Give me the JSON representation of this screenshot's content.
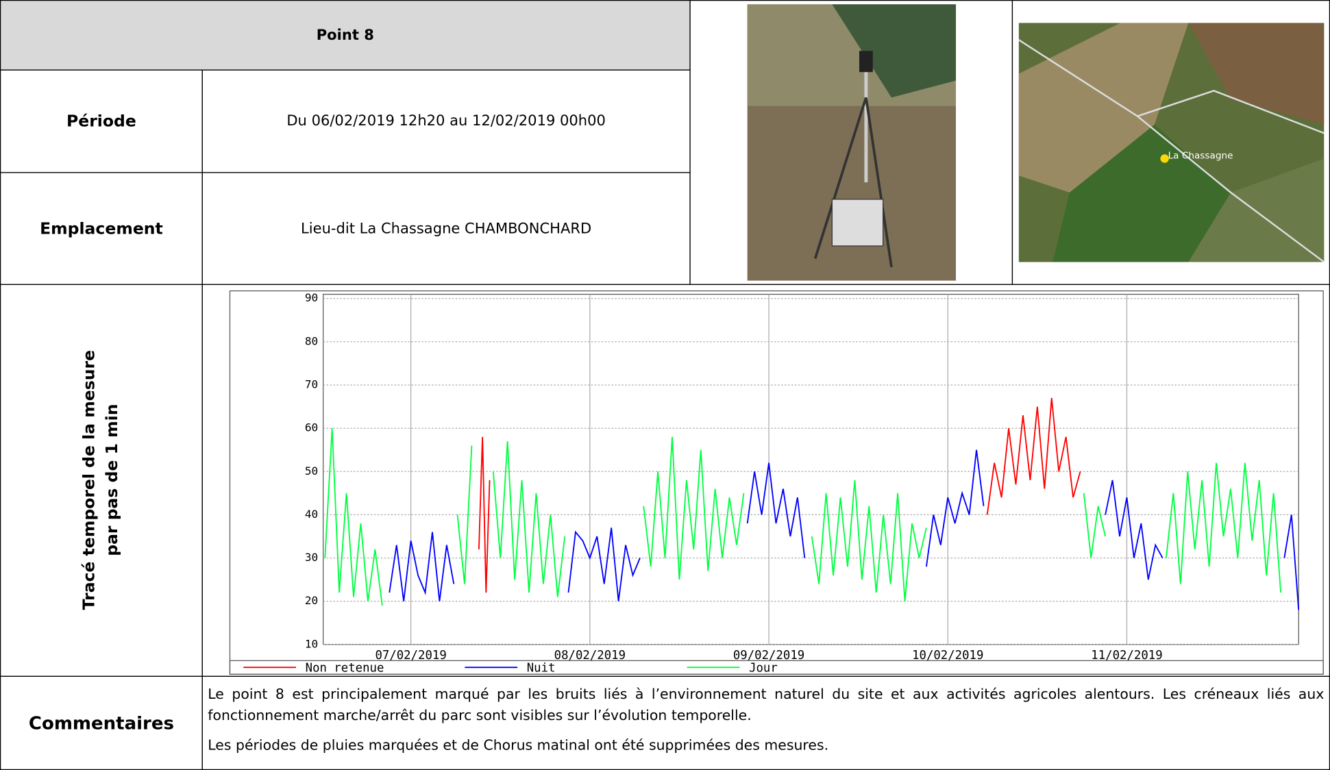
{
  "header": {
    "title": "Point 8"
  },
  "rows": [
    {
      "label": "Période",
      "value": "Du 06/02/2019 12h20 au 12/02/2019 00h00"
    },
    {
      "label": "Emplacement",
      "value": "Lieu-dit La Chassagne CHAMBONCHARD"
    }
  ],
  "map": {
    "place_label": "La Chassagne"
  },
  "chart_section": {
    "label_lines": [
      "Tracé temporel de la mesure",
      "par pas de 1 min"
    ]
  },
  "chart_data": {
    "type": "line",
    "ylim": [
      10,
      90
    ],
    "yticks": [
      10,
      20,
      30,
      40,
      50,
      60,
      70,
      80,
      90
    ],
    "xlim": [
      6.51,
      11.96
    ],
    "xticks": [
      {
        "value": 7,
        "label": "07/02/2019"
      },
      {
        "value": 8,
        "label": "08/02/2019"
      },
      {
        "value": 9,
        "label": "09/02/2019"
      },
      {
        "value": 10,
        "label": "10/02/2019"
      },
      {
        "value": 11,
        "label": "11/02/2019"
      }
    ],
    "grid": true,
    "legend": "bottom",
    "series": [
      {
        "name": "Non retenue",
        "color": "#ff0000",
        "x": [
          7.38,
          7.4,
          7.42,
          7.44,
          7.46,
          10.22,
          10.26,
          10.3,
          10.34,
          10.38,
          10.42,
          10.46,
          10.5,
          10.54,
          10.58,
          10.62,
          10.66,
          10.7,
          10.74
        ],
        "values": [
          32,
          58,
          22,
          48,
          null,
          40,
          52,
          44,
          60,
          47,
          63,
          48,
          65,
          46,
          67,
          50,
          58,
          44,
          50
        ]
      },
      {
        "name": "Nuit",
        "color": "#0000ff",
        "x": [
          6.88,
          6.92,
          6.96,
          7.0,
          7.04,
          7.08,
          7.12,
          7.16,
          7.2,
          7.24,
          7.26,
          7.88,
          7.92,
          7.96,
          8.0,
          8.04,
          8.08,
          8.12,
          8.16,
          8.2,
          8.24,
          8.28,
          8.3,
          8.88,
          8.92,
          8.96,
          9.0,
          9.04,
          9.08,
          9.12,
          9.16,
          9.2,
          9.22,
          9.88,
          9.92,
          9.96,
          10.0,
          10.04,
          10.08,
          10.12,
          10.16,
          10.2,
          10.22,
          10.88,
          10.92,
          10.96,
          11.0,
          11.04,
          11.08,
          11.12,
          11.16,
          11.2,
          11.22,
          11.88,
          11.92,
          11.96
        ],
        "values": [
          22,
          33,
          20,
          34,
          26,
          22,
          36,
          20,
          33,
          24,
          null,
          22,
          36,
          34,
          30,
          35,
          24,
          37,
          20,
          33,
          26,
          30,
          null,
          38,
          50,
          40,
          52,
          38,
          46,
          35,
          44,
          30,
          null,
          28,
          40,
          33,
          44,
          38,
          45,
          40,
          55,
          42,
          null,
          40,
          48,
          35,
          44,
          30,
          38,
          25,
          33,
          30,
          null,
          30,
          40,
          18
        ]
      },
      {
        "name": "Jour",
        "color": "#00ff40",
        "x": [
          6.52,
          6.56,
          6.6,
          6.64,
          6.68,
          6.72,
          6.76,
          6.8,
          6.84,
          6.86,
          7.26,
          7.3,
          7.34,
          7.36,
          7.46,
          7.5,
          7.54,
          7.58,
          7.62,
          7.66,
          7.7,
          7.74,
          7.78,
          7.82,
          7.86,
          7.87,
          8.3,
          8.34,
          8.38,
          8.42,
          8.46,
          8.5,
          8.54,
          8.58,
          8.62,
          8.66,
          8.7,
          8.74,
          8.78,
          8.82,
          8.86,
          8.87,
          9.24,
          9.28,
          9.32,
          9.36,
          9.4,
          9.44,
          9.48,
          9.52,
          9.56,
          9.6,
          9.64,
          9.68,
          9.72,
          9.76,
          9.8,
          9.84,
          9.88,
          9.89,
          10.76,
          10.8,
          10.84,
          10.88,
          10.89,
          11.22,
          11.26,
          11.3,
          11.34,
          11.38,
          11.42,
          11.46,
          11.5,
          11.54,
          11.58,
          11.62,
          11.66,
          11.7,
          11.74,
          11.78,
          11.82,
          11.86
        ],
        "values": [
          30,
          60,
          22,
          45,
          21,
          38,
          20,
          32,
          19,
          null,
          40,
          24,
          56,
          null,
          50,
          30,
          57,
          25,
          48,
          22,
          45,
          24,
          40,
          21,
          35,
          null,
          42,
          28,
          50,
          30,
          58,
          25,
          48,
          32,
          55,
          27,
          46,
          30,
          44,
          33,
          45,
          null,
          35,
          24,
          45,
          26,
          44,
          28,
          48,
          25,
          42,
          22,
          40,
          24,
          45,
          20,
          38,
          30,
          37,
          null,
          45,
          30,
          42,
          35,
          null,
          30,
          45,
          24,
          50,
          32,
          48,
          28,
          52,
          35,
          46,
          30,
          52,
          34,
          48,
          26,
          45,
          22
        ]
      }
    ]
  },
  "comments": {
    "label": "Commentaires",
    "paragraphs": [
      "Le point 8 est principalement marqué par les bruits liés à l’environnement naturel du site et aux activités agricoles alentours. Les créneaux liés aux fonctionnement marche/arrêt du parc sont visibles sur l’évolution temporelle.",
      "Les périodes de pluies marquées et de Chorus matinal ont été supprimées des mesures."
    ]
  }
}
